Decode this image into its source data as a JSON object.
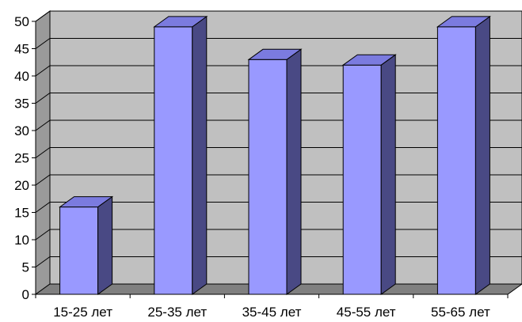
{
  "chart_data": {
    "type": "bar",
    "title": "",
    "xlabel": "",
    "ylabel": "",
    "categories": [
      "15-25 лет",
      "25-35 лет",
      "35-45 лет",
      "45-55 лет",
      "55-65 лет"
    ],
    "values": [
      16,
      49,
      43,
      42,
      49
    ],
    "ylim": [
      0,
      50
    ],
    "yticks": [
      "0",
      "5",
      "10",
      "15",
      "20",
      "25",
      "30",
      "35",
      "40",
      "45",
      "50"
    ],
    "grid": true,
    "legend": "none",
    "style": "3d-column",
    "colors": {
      "bar_front": "#9999ff",
      "bar_top": "#7b7bdf",
      "bar_side": "#494984",
      "plot_back": "#c0c0c0",
      "plot_floor": "#808080",
      "plot_wall": "#9a9a9a",
      "grid": "#000000"
    }
  }
}
